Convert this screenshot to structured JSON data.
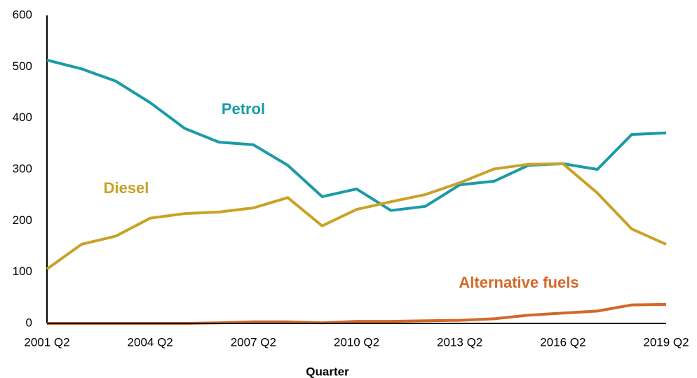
{
  "chart_data": {
    "type": "line",
    "xlabel": "Quarter",
    "categories": [
      "2001 Q2",
      null,
      null,
      "2004 Q2",
      null,
      null,
      "2007 Q2",
      null,
      null,
      "2010 Q2",
      null,
      null,
      "2013 Q2",
      null,
      null,
      "2016 Q2",
      null,
      null,
      "2019 Q2"
    ],
    "series": [
      {
        "name": "Petrol",
        "color": "#1a9ba8",
        "values": [
          513,
          496,
          472,
          430,
          380,
          353,
          348,
          308,
          247,
          262,
          220,
          228,
          270,
          277,
          308,
          311,
          300,
          368,
          371
        ]
      },
      {
        "name": "Diesel",
        "color": "#c9a227",
        "values": [
          106,
          154,
          170,
          205,
          214,
          217,
          225,
          245,
          190,
          222,
          237,
          251,
          274,
          301,
          310,
          311,
          254,
          184,
          154
        ]
      },
      {
        "name": "Alternative fuels",
        "color": "#d2682a",
        "values": [
          0,
          0,
          0,
          0,
          0,
          1,
          3,
          3,
          1,
          4,
          4,
          5,
          6,
          9,
          16,
          20,
          24,
          36,
          37
        ]
      }
    ],
    "ylim": [
      0,
      600
    ],
    "yticks": [
      0,
      100,
      200,
      300,
      400,
      500,
      600
    ],
    "grid": false
  }
}
